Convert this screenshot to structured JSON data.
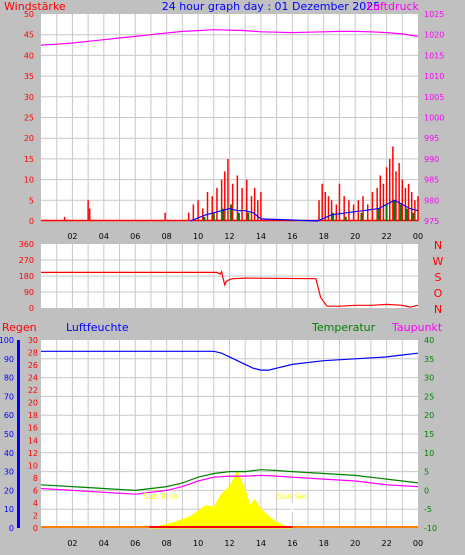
{
  "title": "24 hour graph day : 01 Dezember 2025",
  "colors": {
    "background": "#c0c0c0",
    "plot_bg": "#ffffff",
    "grid": "#c8c8c8",
    "wind": "#ff0000",
    "gust_green": "#008000",
    "avg_blue": "#0000ff",
    "pressure": "#ff00ff",
    "direction": "#ff0000",
    "humidity": "#0000ff",
    "temperature": "#008000",
    "dewpoint": "#ff00ff",
    "rain": "#ff0000",
    "solar": "#ffff00"
  },
  "x_ticks": [
    "02",
    "04",
    "06",
    "08",
    "10",
    "12",
    "14",
    "16",
    "18",
    "20",
    "22",
    "00"
  ],
  "chart_data": [
    {
      "type": "line",
      "name": "wind-pressure",
      "left_axis_label": "Windstärke",
      "right_axis_label": "Luftdruck",
      "left_ticks": [
        "50",
        "45",
        "40",
        "35",
        "30",
        "25",
        "20",
        "15",
        "10",
        "5",
        "0"
      ],
      "right_ticks": [
        "1025",
        "1020",
        "1015",
        "1010",
        "1005",
        "1000",
        "995",
        "990",
        "985",
        "980",
        "975"
      ],
      "ylim_left": [
        0,
        50
      ],
      "ylim_right": [
        975,
        1025
      ],
      "series": [
        {
          "name": "Luftdruck",
          "axis": "right",
          "x": [
            0,
            1,
            2,
            3,
            4,
            5,
            6,
            7,
            8,
            9,
            10,
            11,
            12,
            13,
            14,
            15,
            16,
            17,
            18,
            19,
            20,
            21,
            22,
            23,
            24
          ],
          "values": [
            1017.5,
            1017.7,
            1018.0,
            1018.4,
            1018.8,
            1019.2,
            1019.6,
            1020.0,
            1020.4,
            1020.8,
            1021.0,
            1021.2,
            1021.1,
            1021.0,
            1020.7,
            1020.6,
            1020.5,
            1020.6,
            1020.7,
            1020.8,
            1020.8,
            1020.7,
            1020.5,
            1020.2,
            1019.6
          ]
        },
        {
          "name": "Windstärke",
          "axis": "left",
          "style": "spikes",
          "x": [
            1.5,
            3.0,
            3.1,
            7.9,
            9.4,
            9.7,
            10.0,
            10.3,
            10.6,
            10.9,
            11.2,
            11.5,
            11.7,
            11.9,
            12.2,
            12.5,
            12.8,
            13.1,
            13.4,
            13.6,
            13.8,
            14.0,
            17.7,
            17.9,
            18.1,
            18.3,
            18.5,
            18.8,
            19.0,
            19.3,
            19.6,
            19.9,
            20.2,
            20.5,
            20.8,
            21.1,
            21.4,
            21.6,
            21.8,
            22.0,
            22.2,
            22.4,
            22.6,
            22.8,
            23.0,
            23.2,
            23.4,
            23.6,
            23.8,
            24.0
          ],
          "values": [
            1,
            5,
            3,
            2,
            2,
            4,
            5,
            3,
            7,
            6,
            8,
            10,
            12,
            15,
            9,
            11,
            8,
            10,
            6,
            8,
            5,
            7,
            5,
            9,
            7,
            6,
            5,
            4,
            9,
            6,
            5,
            4,
            5,
            6,
            4,
            7,
            8,
            11,
            9,
            13,
            15,
            18,
            12,
            14,
            10,
            8,
            9,
            7,
            5,
            6
          ]
        },
        {
          "name": "Böen",
          "axis": "left",
          "style": "spikes",
          "x": [
            10.4,
            11.0,
            11.6,
            12.1,
            12.6,
            13.2,
            18.6,
            19.4,
            20.4,
            21.5,
            22.0,
            22.5,
            22.9,
            23.3,
            23.7
          ],
          "values": [
            1,
            2,
            3,
            4,
            2,
            2,
            2,
            1,
            2,
            3,
            4,
            5,
            4,
            3,
            2
          ]
        },
        {
          "name": "Mittel",
          "axis": "left",
          "x": [
            9.5,
            10.5,
            11.5,
            12.0,
            12.5,
            13.0,
            13.5,
            14.0,
            17.6,
            18.5,
            19.5,
            20.5,
            21.5,
            22.0,
            22.5,
            23.0,
            23.5,
            24.0
          ],
          "values": [
            0,
            1.5,
            2.5,
            3,
            2.5,
            2.5,
            2,
            0.5,
            0,
            1.5,
            2,
            2.5,
            3,
            4,
            5,
            4,
            3,
            2.5
          ]
        }
      ]
    },
    {
      "type": "line",
      "name": "wind-direction",
      "left_ticks": [
        "360",
        "270",
        "180",
        "90",
        "0"
      ],
      "right_labels": [
        "N",
        "W",
        "S",
        "O",
        "N"
      ],
      "ylim": [
        0,
        360
      ],
      "series": [
        {
          "name": "Windrichtung",
          "x": [
            0,
            11.2,
            11.4,
            11.5,
            11.6,
            11.7,
            11.8,
            12.0,
            12.2,
            13.0,
            17.5,
            17.8,
            18.2,
            19.0,
            20.0,
            21.0,
            22.0,
            23.0,
            23.5,
            24.0
          ],
          "values": [
            200,
            200,
            190,
            205,
            165,
            130,
            150,
            160,
            165,
            168,
            165,
            60,
            10,
            10,
            15,
            15,
            20,
            15,
            5,
            15
          ]
        }
      ]
    },
    {
      "type": "line",
      "name": "humidity-temperature",
      "labels": {
        "rain": "Regen",
        "humidity": "Luftfeuchte",
        "temperature": "Temperatur",
        "dewpoint": "Taupunkt"
      },
      "hum_ticks": [
        "100",
        "90",
        "80",
        "70",
        "60",
        "50",
        "40",
        "30",
        "20",
        "10",
        "0"
      ],
      "rain_ticks": [
        "30",
        "28",
        "26",
        "24",
        "22",
        "20",
        "18",
        "16",
        "14",
        "12",
        "10",
        "8",
        "6",
        "4",
        "2",
        "0"
      ],
      "temp_ticks": [
        "40",
        "35",
        "30",
        "25",
        "20",
        "15",
        "10",
        "5",
        "0",
        "-5",
        "-10"
      ],
      "ylim_humidity": [
        0,
        100
      ],
      "ylim_temperature": [
        -10,
        40
      ],
      "annotations": {
        "sunrise": "Sun Rise",
        "sunset": "Sun Set"
      },
      "series": [
        {
          "name": "Luftfeuchte",
          "axis": "humidity",
          "x": [
            0,
            8,
            10,
            11.0,
            11.5,
            12.0,
            12.5,
            13.0,
            13.5,
            14.0,
            14.5,
            15.0,
            16.0,
            18.0,
            20.0,
            22.0,
            23.0,
            24.0
          ],
          "values": [
            94,
            94,
            94,
            94,
            93,
            91,
            89,
            87,
            85,
            84,
            84,
            85,
            87,
            89,
            90,
            91,
            92,
            93
          ]
        },
        {
          "name": "Temperatur",
          "axis": "temperature",
          "x": [
            0,
            2,
            4,
            6,
            8,
            9,
            10,
            11,
            12,
            13,
            14,
            15,
            16,
            18,
            20,
            22,
            24
          ],
          "values": [
            1.5,
            1.0,
            0.5,
            0,
            1.0,
            2.0,
            3.5,
            4.5,
            5.0,
            5.0,
            5.5,
            5.3,
            5.0,
            4.5,
            4.0,
            3.0,
            2.0
          ]
        },
        {
          "name": "Taupunkt",
          "axis": "temperature",
          "x": [
            0,
            2,
            4,
            6,
            8,
            9,
            10,
            11,
            12,
            13,
            14,
            15,
            16,
            18,
            20,
            22,
            24
          ],
          "values": [
            0.5,
            0,
            -0.5,
            -1.0,
            0,
            1.0,
            2.5,
            3.5,
            3.8,
            3.8,
            4.0,
            3.8,
            3.5,
            3.0,
            2.5,
            1.5,
            1.0
          ]
        },
        {
          "name": "Solar",
          "axis": "humidity",
          "style": "area",
          "x": [
            6.9,
            7.5,
            8.5,
            9.5,
            10.0,
            10.5,
            11.0,
            11.5,
            12.0,
            12.2,
            12.5,
            12.8,
            13.0,
            13.3,
            13.6,
            14.0,
            14.5,
            15.0,
            15.5,
            16.0
          ],
          "values": [
            0,
            1,
            3,
            6,
            9,
            12,
            11,
            18,
            22,
            25,
            30,
            24,
            20,
            12,
            15,
            10,
            6,
            3,
            1,
            0
          ]
        },
        {
          "name": "Regen",
          "axis": "rain",
          "x": [
            0,
            24
          ],
          "values": [
            0,
            0
          ]
        }
      ]
    }
  ]
}
